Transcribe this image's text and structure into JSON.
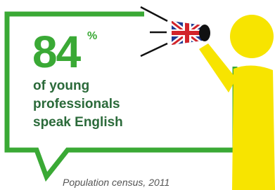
{
  "stat": {
    "value": 84,
    "unit": "%"
  },
  "caption": [
    "of young",
    "professionals",
    "speak English"
  ],
  "source": "Population census, 2011"
}
